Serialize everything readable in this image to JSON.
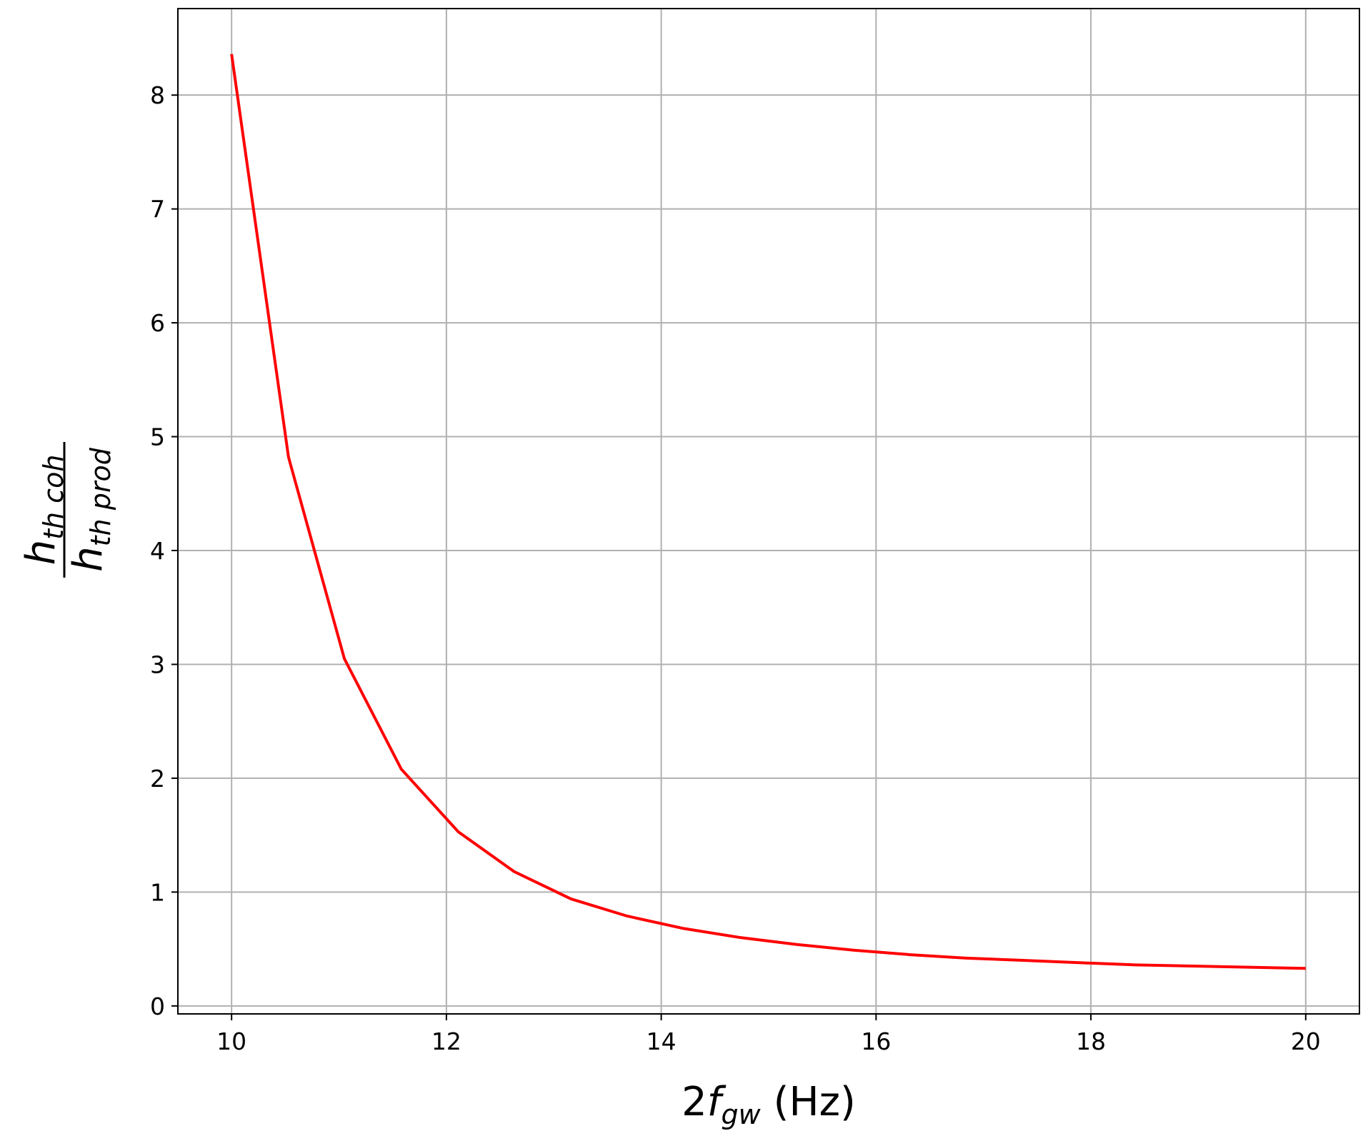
{
  "chart_data": {
    "type": "line",
    "xlabel": {
      "main": "2",
      "var": "f",
      "sub": "gw",
      "unit": "(Hz)"
    },
    "ylabel": {
      "num": {
        "var": "h",
        "sub": "th coh"
      },
      "den": {
        "var": "h",
        "sub": "th prod"
      }
    },
    "x": [
      10,
      10.53,
      11.05,
      11.58,
      12.11,
      12.63,
      13.16,
      13.68,
      14.21,
      14.74,
      15.26,
      15.79,
      16.32,
      16.84,
      17.37,
      17.89,
      18.42,
      18.95,
      19.47,
      20
    ],
    "series": [
      {
        "color": "#ff0000",
        "values": [
          8.36,
          4.82,
          3.05,
          2.08,
          1.53,
          1.18,
          0.94,
          0.79,
          0.68,
          0.6,
          0.54,
          0.49,
          0.45,
          0.42,
          0.4,
          0.38,
          0.36,
          0.35,
          0.34,
          0.33
        ]
      }
    ],
    "xlim": [
      9.5,
      20.5
    ],
    "ylim": [
      -0.07,
      8.76
    ],
    "xticks": [
      10,
      12,
      14,
      16,
      18,
      20
    ],
    "yticks": [
      0,
      1,
      2,
      3,
      4,
      5,
      6,
      7,
      8
    ],
    "grid": true
  }
}
